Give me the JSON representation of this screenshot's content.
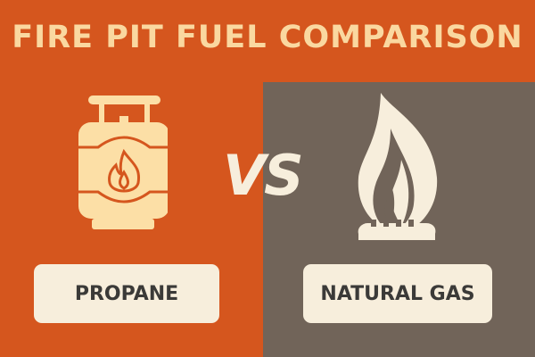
{
  "title": "FIRE PIT FUEL COMPARISON",
  "vs_label": "VS",
  "left": {
    "label": "PROPANE",
    "icon": "propane-tank-icon"
  },
  "right": {
    "label": "NATURAL GAS",
    "icon": "gas-burner-flame-icon"
  },
  "colors": {
    "orange": "#D5561E",
    "gray": "#716459",
    "cream": "#F7EEDC",
    "tank": "#FCDFA6"
  }
}
